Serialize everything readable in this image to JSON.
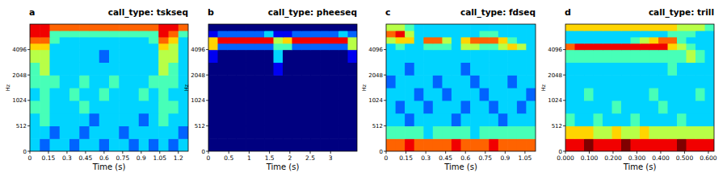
{
  "chart_data": [
    {
      "type": "heatmap",
      "label": "a",
      "title": "call_type: tskseq",
      "x_label": "Time (s)",
      "y_label": "Hz",
      "xlim": [
        0,
        1.28
      ],
      "xticks": [
        0,
        0.15,
        0.3,
        0.45,
        0.6,
        0.75,
        0.9,
        1.05,
        1.2
      ],
      "ylim": [
        0,
        8192
      ],
      "yticks": [
        0,
        512,
        1024,
        2048,
        4096
      ],
      "log": "y",
      "time_edges": [
        0,
        0.08,
        0.16,
        0.24,
        0.32,
        0.4,
        0.48,
        0.56,
        0.64,
        0.72,
        0.8,
        0.88,
        0.96,
        1.04,
        1.12,
        1.2,
        1.28
      ],
      "freq_edges": [
        0,
        256,
        512,
        724,
        1024,
        1448,
        2048,
        2896,
        4096,
        4871,
        5793,
        6889,
        8192
      ],
      "color_range": [
        0,
        9
      ],
      "cells": [
        [
          3,
          2,
          3,
          3,
          2,
          3,
          3,
          2,
          3,
          3,
          2,
          3,
          2,
          3,
          2,
          3
        ],
        [
          3,
          3,
          2,
          3,
          3,
          2,
          3,
          3,
          3,
          2,
          3,
          3,
          3,
          3,
          3,
          2
        ],
        [
          3,
          4,
          3,
          3,
          3,
          3,
          2,
          3,
          3,
          3,
          3,
          2,
          3,
          4,
          3,
          3
        ],
        [
          4,
          4,
          3,
          3,
          3,
          4,
          3,
          3,
          3,
          3,
          3,
          3,
          3,
          4,
          4,
          3
        ],
        [
          3,
          4,
          3,
          3,
          4,
          3,
          3,
          4,
          3,
          3,
          3,
          4,
          3,
          4,
          3,
          3
        ],
        [
          4,
          4,
          4,
          3,
          3,
          4,
          3,
          3,
          4,
          3,
          3,
          3,
          4,
          4,
          4,
          3
        ],
        [
          4,
          5,
          3,
          3,
          3,
          3,
          3,
          3,
          3,
          3,
          3,
          3,
          3,
          5,
          4,
          3
        ],
        [
          5,
          5,
          3,
          3,
          3,
          3,
          3,
          2,
          3,
          3,
          3,
          3,
          3,
          5,
          5,
          3
        ],
        [
          6,
          6,
          3,
          3,
          3,
          3,
          3,
          3,
          3,
          3,
          3,
          3,
          3,
          6,
          5,
          3
        ],
        [
          7,
          7,
          4,
          3,
          3,
          3,
          3,
          3,
          3,
          3,
          3,
          3,
          4,
          7,
          6,
          3
        ],
        [
          8,
          8,
          4,
          4,
          4,
          4,
          4,
          4,
          4,
          4,
          4,
          4,
          4,
          8,
          7,
          4
        ],
        [
          8,
          8,
          7,
          7,
          7,
          7,
          7,
          7,
          7,
          7,
          7,
          7,
          7,
          8,
          8,
          7
        ]
      ]
    },
    {
      "type": "heatmap",
      "label": "b",
      "title": "call_type: pheeseq",
      "x_label": "Time (s)",
      "y_label": "Hz",
      "xlim": [
        0,
        3.65
      ],
      "xticks": [
        0,
        0.5,
        1,
        1.5,
        2,
        2.5,
        3
      ],
      "ylim": [
        0,
        8192
      ],
      "yticks": [
        0,
        512,
        1024,
        2048,
        4096
      ],
      "log": "y",
      "time_edges": [
        0,
        0.228,
        0.456,
        0.684,
        0.913,
        1.141,
        1.369,
        1.597,
        1.825,
        2.053,
        2.281,
        2.509,
        2.738,
        2.966,
        3.194,
        3.422,
        3.65
      ],
      "freq_edges": [
        0,
        256,
        512,
        724,
        1024,
        1448,
        2048,
        2896,
        4096,
        4871,
        5793,
        6889,
        8192
      ],
      "color_range": [
        0,
        9
      ],
      "cells": [
        [
          0,
          0,
          0,
          0,
          0,
          0,
          0,
          0,
          0,
          0,
          0,
          0,
          0,
          0,
          0,
          0
        ],
        [
          0,
          0,
          0,
          0,
          0,
          0,
          0,
          0,
          0,
          0,
          0,
          0,
          0,
          0,
          0,
          0
        ],
        [
          0,
          0,
          0,
          0,
          0,
          0,
          0,
          0,
          0,
          0,
          0,
          0,
          0,
          0,
          0,
          0
        ],
        [
          0,
          0,
          0,
          0,
          0,
          0,
          0,
          0,
          0,
          0,
          0,
          0,
          0,
          0,
          0,
          0
        ],
        [
          0,
          0,
          0,
          0,
          0,
          0,
          0,
          0,
          0,
          0,
          0,
          0,
          0,
          0,
          0,
          0
        ],
        [
          0,
          0,
          0,
          0,
          0,
          0,
          0,
          0,
          0,
          0,
          0,
          0,
          0,
          0,
          0,
          0
        ],
        [
          0,
          0,
          0,
          0,
          0,
          0,
          0,
          1,
          0,
          0,
          0,
          0,
          0,
          0,
          0,
          0
        ],
        [
          1,
          0,
          0,
          0,
          0,
          0,
          0,
          3,
          0,
          0,
          0,
          0,
          0,
          0,
          0,
          1
        ],
        [
          6,
          2,
          2,
          2,
          2,
          2,
          2,
          4,
          4,
          2,
          2,
          2,
          2,
          2,
          2,
          5
        ],
        [
          6,
          8,
          8,
          8,
          8,
          8,
          8,
          5,
          6,
          8,
          8,
          8,
          8,
          8,
          8,
          5
        ],
        [
          1,
          2,
          2,
          2,
          2,
          2,
          3,
          1,
          1,
          2,
          2,
          2,
          2,
          2,
          3,
          2
        ],
        [
          0,
          0,
          0,
          0,
          0,
          0,
          0,
          0,
          0,
          0,
          0,
          0,
          0,
          0,
          0,
          0
        ]
      ]
    },
    {
      "type": "heatmap",
      "label": "c",
      "title": "call_type: fdseq",
      "x_label": "Time (s)",
      "y_label": "Hz",
      "xlim": [
        0,
        1.13
      ],
      "xticks": [
        0,
        0.15,
        0.3,
        0.45,
        0.6,
        0.75,
        0.9,
        1.05
      ],
      "ylim": [
        0,
        8192
      ],
      "yticks": [
        0,
        512,
        1024,
        2048,
        4096
      ],
      "log": "y",
      "time_edges": [
        0,
        0.071,
        0.141,
        0.212,
        0.283,
        0.353,
        0.424,
        0.494,
        0.565,
        0.636,
        0.706,
        0.777,
        0.848,
        0.918,
        0.989,
        1.059,
        1.13
      ],
      "freq_edges": [
        0,
        256,
        512,
        724,
        1024,
        1448,
        2048,
        2896,
        4096,
        4871,
        5793,
        6889,
        8192
      ],
      "color_range": [
        0,
        9
      ],
      "cells": [
        [
          7,
          7,
          8,
          7,
          7,
          7,
          7,
          8,
          7,
          7,
          7,
          8,
          7,
          7,
          7,
          7
        ],
        [
          4,
          4,
          4,
          4,
          3,
          4,
          4,
          4,
          4,
          3,
          4,
          4,
          4,
          4,
          4,
          4
        ],
        [
          3,
          3,
          2,
          3,
          3,
          3,
          3,
          2,
          3,
          3,
          3,
          3,
          2,
          3,
          3,
          3
        ],
        [
          3,
          2,
          3,
          3,
          2,
          3,
          3,
          3,
          2,
          3,
          3,
          2,
          3,
          3,
          2,
          3
        ],
        [
          3,
          3,
          3,
          2,
          3,
          3,
          2,
          3,
          3,
          3,
          2,
          3,
          3,
          3,
          3,
          2
        ],
        [
          2,
          3,
          3,
          3,
          3,
          2,
          3,
          3,
          3,
          2,
          3,
          3,
          3,
          2,
          3,
          3
        ],
        [
          3,
          3,
          2,
          3,
          3,
          3,
          3,
          3,
          2,
          3,
          3,
          3,
          3,
          3,
          3,
          3
        ],
        [
          3,
          3,
          3,
          3,
          3,
          3,
          3,
          3,
          3,
          3,
          3,
          3,
          3,
          3,
          3,
          3
        ],
        [
          3,
          4,
          3,
          3,
          4,
          4,
          4,
          3,
          5,
          5,
          4,
          4,
          5,
          6,
          5,
          3
        ],
        [
          5,
          6,
          6,
          3,
          7,
          7,
          5,
          3,
          6,
          7,
          7,
          7,
          6,
          4,
          3,
          3
        ],
        [
          7,
          8,
          5,
          3,
          3,
          3,
          3,
          3,
          3,
          3,
          4,
          4,
          3,
          3,
          3,
          3
        ],
        [
          5,
          5,
          4,
          3,
          3,
          3,
          3,
          3,
          3,
          3,
          3,
          3,
          3,
          3,
          3,
          3
        ]
      ]
    },
    {
      "type": "heatmap",
      "label": "d",
      "title": "call_type: trill",
      "x_label": "Time (s)",
      "y_label": "Hz",
      "xlim": [
        0,
        0.624
      ],
      "xticks": [
        {
          "value": 0,
          "label": "0.000"
        },
        {
          "value": 0.1,
          "label": "0.100"
        },
        {
          "value": 0.2,
          "label": "0.200"
        },
        {
          "value": 0.3,
          "label": "0.300"
        },
        {
          "value": 0.4,
          "label": "0.400"
        },
        {
          "value": 0.5,
          "label": "0.500"
        },
        {
          "value": 0.6,
          "label": "0.600"
        }
      ],
      "ylim": [
        0,
        8192
      ],
      "yticks": [
        0,
        512,
        1024,
        2048,
        4096
      ],
      "log": "y",
      "time_edges": [
        0,
        0.039,
        0.078,
        0.117,
        0.156,
        0.195,
        0.234,
        0.273,
        0.312,
        0.351,
        0.39,
        0.429,
        0.468,
        0.507,
        0.546,
        0.585,
        0.624
      ],
      "freq_edges": [
        0,
        256,
        512,
        724,
        1024,
        1448,
        2048,
        2896,
        4096,
        4871,
        5793,
        6889,
        8192
      ],
      "color_range": [
        0,
        9
      ],
      "cells": [
        [
          8,
          8,
          9,
          8,
          8,
          8,
          9,
          8,
          8,
          8,
          8,
          8,
          9,
          8,
          8,
          8
        ],
        [
          6,
          6,
          6,
          5,
          5,
          6,
          5,
          5,
          6,
          5,
          5,
          5,
          5,
          5,
          5,
          5
        ],
        [
          4,
          3,
          3,
          4,
          3,
          3,
          3,
          4,
          3,
          3,
          3,
          3,
          4,
          3,
          3,
          3
        ],
        [
          3,
          3,
          3,
          3,
          3,
          4,
          3,
          3,
          3,
          3,
          4,
          3,
          3,
          3,
          3,
          3
        ],
        [
          3,
          3,
          4,
          3,
          3,
          3,
          3,
          3,
          3,
          4,
          3,
          3,
          3,
          3,
          4,
          3
        ],
        [
          3,
          3,
          3,
          3,
          3,
          3,
          3,
          3,
          3,
          3,
          3,
          3,
          3,
          3,
          3,
          3
        ],
        [
          3,
          3,
          3,
          3,
          3,
          3,
          3,
          3,
          3,
          3,
          3,
          4,
          3,
          3,
          3,
          3
        ],
        [
          4,
          4,
          4,
          4,
          4,
          4,
          4,
          4,
          4,
          4,
          4,
          4,
          4,
          5,
          4,
          3
        ],
        [
          7,
          8,
          8,
          8,
          8,
          8,
          8,
          8,
          8,
          8,
          8,
          6,
          5,
          4,
          3,
          3
        ],
        [
          3,
          3,
          3,
          3,
          3,
          3,
          3,
          4,
          5,
          6,
          7,
          7,
          4,
          3,
          3,
          3
        ],
        [
          3,
          3,
          3,
          3,
          3,
          3,
          3,
          3,
          3,
          3,
          3,
          4,
          4,
          4,
          3,
          3
        ],
        [
          6,
          6,
          6,
          6,
          6,
          6,
          6,
          6,
          6,
          6,
          6,
          6,
          5,
          5,
          5,
          4
        ]
      ]
    }
  ]
}
